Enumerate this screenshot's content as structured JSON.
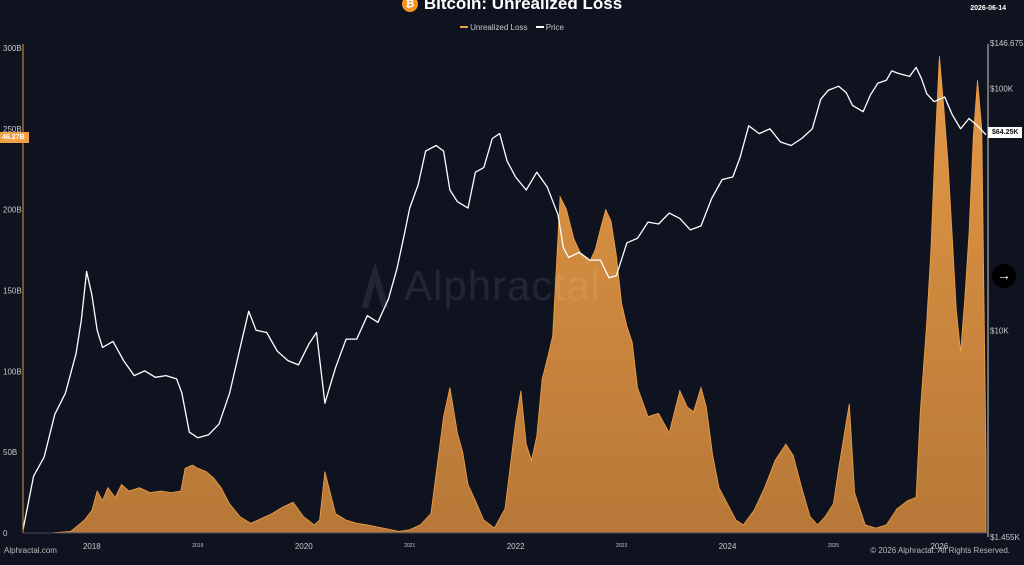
{
  "header": {
    "title": "Bitcoin: Unrealized Loss",
    "logo_glyph": "₿",
    "date": "2026-06-14"
  },
  "legend": [
    {
      "label": "Unrealized Loss",
      "color": "#f0a047"
    },
    {
      "label": "Price",
      "color": "#ffffff"
    }
  ],
  "watermark": "Alphractal",
  "badges": {
    "loss_current": "46.27B",
    "price_current": "$64.25K"
  },
  "footer": {
    "source": "Alphractal.com",
    "copyright": "© 2026 Alphractal. All Rights Reserved."
  },
  "nav_icon": "→",
  "colors": {
    "background": "#0f1320",
    "loss": "#f0a047",
    "price": "#ffffff",
    "axis": "#e0953a"
  },
  "chart_data": {
    "type": "area",
    "title": "Bitcoin: Unrealized Loss",
    "x_ticks": [
      "2018",
      "2019",
      "2020",
      "2021",
      "2022",
      "2023",
      "2024",
      "2025",
      "2026"
    ],
    "y_left": {
      "label": "",
      "ticks": [
        "0",
        "50B",
        "100B",
        "150B",
        "200B",
        "250B",
        "300B"
      ],
      "range": [
        0,
        300
      ]
    },
    "y_right": {
      "label": "",
      "scale": "log",
      "ticks": [
        "$1.455K",
        "$10K",
        "$100K",
        "$146.675K"
      ],
      "range": [
        1455,
        146675
      ]
    },
    "series": [
      {
        "name": "Unrealized Loss",
        "unit": "B",
        "axis": "left",
        "points": [
          [
            2017.35,
            0
          ],
          [
            2017.6,
            0
          ],
          [
            2017.8,
            1
          ],
          [
            2017.93,
            8
          ],
          [
            2018.0,
            14
          ],
          [
            2018.05,
            26
          ],
          [
            2018.1,
            20
          ],
          [
            2018.15,
            28
          ],
          [
            2018.22,
            22
          ],
          [
            2018.28,
            30
          ],
          [
            2018.35,
            26
          ],
          [
            2018.45,
            28
          ],
          [
            2018.55,
            25
          ],
          [
            2018.65,
            26
          ],
          [
            2018.75,
            25
          ],
          [
            2018.84,
            26
          ],
          [
            2018.88,
            40
          ],
          [
            2018.95,
            42
          ],
          [
            2019.0,
            40
          ],
          [
            2019.08,
            38
          ],
          [
            2019.15,
            34
          ],
          [
            2019.22,
            28
          ],
          [
            2019.3,
            18
          ],
          [
            2019.4,
            10
          ],
          [
            2019.5,
            6
          ],
          [
            2019.6,
            9
          ],
          [
            2019.7,
            12
          ],
          [
            2019.8,
            16
          ],
          [
            2019.9,
            19
          ],
          [
            2020.0,
            10
          ],
          [
            2020.1,
            5
          ],
          [
            2020.15,
            8
          ],
          [
            2020.2,
            38
          ],
          [
            2020.25,
            25
          ],
          [
            2020.3,
            12
          ],
          [
            2020.4,
            8
          ],
          [
            2020.5,
            6
          ],
          [
            2020.6,
            5
          ],
          [
            2020.75,
            3
          ],
          [
            2020.9,
            1
          ],
          [
            2021.0,
            2
          ],
          [
            2021.1,
            5
          ],
          [
            2021.2,
            12
          ],
          [
            2021.32,
            72
          ],
          [
            2021.38,
            90
          ],
          [
            2021.45,
            62
          ],
          [
            2021.5,
            50
          ],
          [
            2021.55,
            30
          ],
          [
            2021.62,
            20
          ],
          [
            2021.7,
            8
          ],
          [
            2021.8,
            3
          ],
          [
            2021.9,
            15
          ],
          [
            2022.0,
            68
          ],
          [
            2022.05,
            88
          ],
          [
            2022.1,
            55
          ],
          [
            2022.15,
            45
          ],
          [
            2022.2,
            60
          ],
          [
            2022.25,
            95
          ],
          [
            2022.3,
            108
          ],
          [
            2022.35,
            122
          ],
          [
            2022.42,
            208
          ],
          [
            2022.48,
            200
          ],
          [
            2022.55,
            182
          ],
          [
            2022.62,
            172
          ],
          [
            2022.7,
            168
          ],
          [
            2022.75,
            175
          ],
          [
            2022.8,
            188
          ],
          [
            2022.85,
            200
          ],
          [
            2022.9,
            193
          ],
          [
            2022.95,
            172
          ],
          [
            2023.0,
            142
          ],
          [
            2023.05,
            128
          ],
          [
            2023.1,
            118
          ],
          [
            2023.15,
            90
          ],
          [
            2023.25,
            72
          ],
          [
            2023.35,
            74
          ],
          [
            2023.45,
            62
          ],
          [
            2023.55,
            88
          ],
          [
            2023.62,
            78
          ],
          [
            2023.68,
            75
          ],
          [
            2023.75,
            90
          ],
          [
            2023.8,
            78
          ],
          [
            2023.86,
            48
          ],
          [
            2023.92,
            28
          ],
          [
            2024.0,
            18
          ],
          [
            2024.08,
            8
          ],
          [
            2024.15,
            5
          ],
          [
            2024.25,
            14
          ],
          [
            2024.35,
            28
          ],
          [
            2024.45,
            45
          ],
          [
            2024.55,
            55
          ],
          [
            2024.62,
            48
          ],
          [
            2024.7,
            28
          ],
          [
            2024.78,
            10
          ],
          [
            2024.85,
            5
          ],
          [
            2024.92,
            10
          ],
          [
            2025.0,
            18
          ],
          [
            2025.05,
            40
          ],
          [
            2025.15,
            80
          ],
          [
            2025.2,
            25
          ],
          [
            2025.3,
            5
          ],
          [
            2025.4,
            3
          ],
          [
            2025.5,
            5
          ],
          [
            2025.6,
            15
          ],
          [
            2025.7,
            20
          ],
          [
            2025.78,
            22
          ],
          [
            2025.82,
            75
          ],
          [
            2025.88,
            130
          ],
          [
            2025.92,
            175
          ],
          [
            2025.96,
            240
          ],
          [
            2026.0,
            295
          ],
          [
            2026.04,
            265
          ],
          [
            2026.08,
            230
          ],
          [
            2026.12,
            185
          ],
          [
            2026.16,
            138
          ],
          [
            2026.2,
            112
          ],
          [
            2026.24,
            145
          ],
          [
            2026.28,
            185
          ],
          [
            2026.32,
            245
          ],
          [
            2026.36,
            280
          ],
          [
            2026.4,
            250
          ],
          [
            2026.44,
            46.27
          ]
        ]
      },
      {
        "name": "Price",
        "unit": "USD",
        "axis": "right",
        "points": [
          [
            2017.35,
            1500
          ],
          [
            2017.45,
            2500
          ],
          [
            2017.55,
            3000
          ],
          [
            2017.65,
            4500
          ],
          [
            2017.75,
            5500
          ],
          [
            2017.85,
            8000
          ],
          [
            2017.9,
            11000
          ],
          [
            2017.95,
            17500
          ],
          [
            2018.0,
            14000
          ],
          [
            2018.05,
            10000
          ],
          [
            2018.1,
            8500
          ],
          [
            2018.2,
            9000
          ],
          [
            2018.3,
            7500
          ],
          [
            2018.4,
            6500
          ],
          [
            2018.5,
            6800
          ],
          [
            2018.6,
            6400
          ],
          [
            2018.7,
            6500
          ],
          [
            2018.8,
            6300
          ],
          [
            2018.85,
            5500
          ],
          [
            2018.92,
            3800
          ],
          [
            2019.0,
            3600
          ],
          [
            2019.1,
            3700
          ],
          [
            2019.2,
            4100
          ],
          [
            2019.3,
            5500
          ],
          [
            2019.4,
            8500
          ],
          [
            2019.48,
            12000
          ],
          [
            2019.55,
            10000
          ],
          [
            2019.65,
            9800
          ],
          [
            2019.75,
            8200
          ],
          [
            2019.85,
            7500
          ],
          [
            2019.95,
            7200
          ],
          [
            2020.05,
            8800
          ],
          [
            2020.12,
            9800
          ],
          [
            2020.2,
            5000
          ],
          [
            2020.3,
            7000
          ],
          [
            2020.4,
            9200
          ],
          [
            2020.5,
            9200
          ],
          [
            2020.6,
            11500
          ],
          [
            2020.7,
            10800
          ],
          [
            2020.8,
            13500
          ],
          [
            2020.88,
            18000
          ],
          [
            2020.95,
            25000
          ],
          [
            2021.0,
            32000
          ],
          [
            2021.08,
            40000
          ],
          [
            2021.15,
            55000
          ],
          [
            2021.25,
            58000
          ],
          [
            2021.32,
            55000
          ],
          [
            2021.38,
            38000
          ],
          [
            2021.45,
            34000
          ],
          [
            2021.55,
            32000
          ],
          [
            2021.62,
            45000
          ],
          [
            2021.7,
            47000
          ],
          [
            2021.78,
            62000
          ],
          [
            2021.85,
            65000
          ],
          [
            2021.92,
            50000
          ],
          [
            2022.0,
            43000
          ],
          [
            2022.1,
            38000
          ],
          [
            2022.2,
            45000
          ],
          [
            2022.3,
            39000
          ],
          [
            2022.4,
            30000
          ],
          [
            2022.45,
            22000
          ],
          [
            2022.5,
            20000
          ],
          [
            2022.6,
            21000
          ],
          [
            2022.7,
            19500
          ],
          [
            2022.8,
            19500
          ],
          [
            2022.88,
            16500
          ],
          [
            2022.95,
            16800
          ],
          [
            2023.05,
            23000
          ],
          [
            2023.15,
            24000
          ],
          [
            2023.25,
            28000
          ],
          [
            2023.35,
            27500
          ],
          [
            2023.45,
            30500
          ],
          [
            2023.55,
            29000
          ],
          [
            2023.65,
            26000
          ],
          [
            2023.75,
            27000
          ],
          [
            2023.85,
            35000
          ],
          [
            2023.95,
            42000
          ],
          [
            2024.05,
            43000
          ],
          [
            2024.12,
            52000
          ],
          [
            2024.2,
            70000
          ],
          [
            2024.3,
            65000
          ],
          [
            2024.4,
            68000
          ],
          [
            2024.5,
            60000
          ],
          [
            2024.6,
            58000
          ],
          [
            2024.7,
            62000
          ],
          [
            2024.8,
            68000
          ],
          [
            2024.88,
            90000
          ],
          [
            2024.95,
            98000
          ],
          [
            2025.05,
            102000
          ],
          [
            2025.12,
            96000
          ],
          [
            2025.18,
            85000
          ],
          [
            2025.28,
            80000
          ],
          [
            2025.35,
            94000
          ],
          [
            2025.42,
            105000
          ],
          [
            2025.5,
            108000
          ],
          [
            2025.55,
            118000
          ],
          [
            2025.62,
            115000
          ],
          [
            2025.72,
            112000
          ],
          [
            2025.78,
            122000
          ],
          [
            2025.83,
            110000
          ],
          [
            2025.88,
            95000
          ],
          [
            2025.95,
            88000
          ],
          [
            2026.05,
            92000
          ],
          [
            2026.12,
            78000
          ],
          [
            2026.2,
            68000
          ],
          [
            2026.28,
            75000
          ],
          [
            2026.36,
            70000
          ],
          [
            2026.44,
            64250
          ]
        ]
      }
    ],
    "current": {
      "loss": "46.27B",
      "price": "$64.25K"
    },
    "legend_position": "top-center",
    "grid": false
  }
}
